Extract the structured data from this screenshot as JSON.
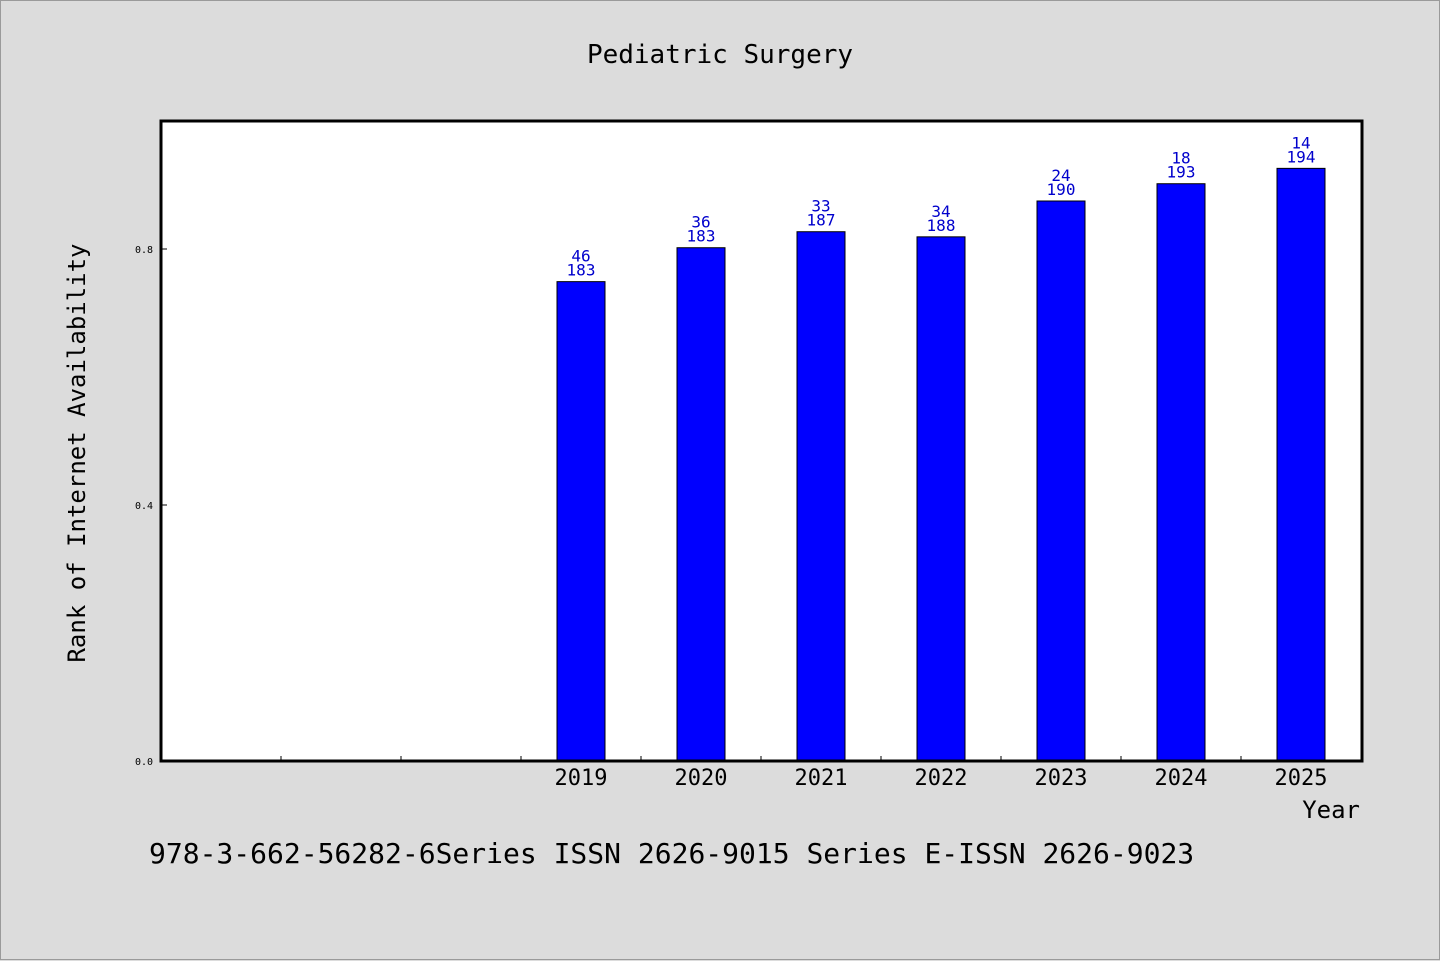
{
  "chart_data": {
    "type": "bar",
    "title": "Pediatric Surgery",
    "xlabel": "Year",
    "ylabel": "Rank of Internet Availability",
    "ylim": [
      0,
      1.0
    ],
    "yticks": [
      0.0,
      0.4,
      0.8
    ],
    "ytick_labels": [
      "0.0",
      "0.4",
      "0.8"
    ],
    "slots": 10,
    "bar_color": "#0000ff",
    "label_color": "#0000cc",
    "grid": false,
    "categories": [
      "2019",
      "2020",
      "2021",
      "2022",
      "2023",
      "2024",
      "2025"
    ],
    "values": [
      0.749,
      0.802,
      0.827,
      0.819,
      0.875,
      0.902,
      0.926
    ],
    "labels_top": [
      "46",
      "36",
      "33",
      "34",
      "24",
      "18",
      "14"
    ],
    "labels_bottom": [
      "183",
      "183",
      "187",
      "188",
      "190",
      "193",
      "194"
    ]
  },
  "footer": {
    "text": "978-3-662-56282-6Series ISSN 2626-9015 Series E-ISSN 2626-9023"
  }
}
